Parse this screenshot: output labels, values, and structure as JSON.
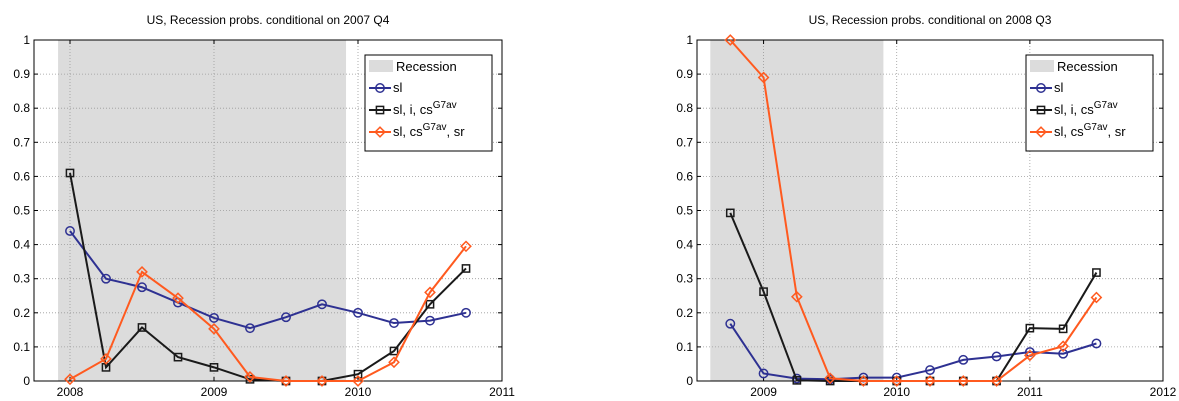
{
  "chart_data": [
    {
      "type": "line",
      "title": "US, Recession probs. conditional on 2007 Q4",
      "xlim": [
        2007.75,
        2011.0
      ],
      "ylim": [
        0,
        1
      ],
      "xticks": [
        2008,
        2009,
        2010,
        2011
      ],
      "xtick_labels": [
        "2008",
        "2009",
        "2010",
        "2011"
      ],
      "yticks": [
        0,
        0.1,
        0.2,
        0.3,
        0.4,
        0.5,
        0.6,
        0.7,
        0.8,
        0.9,
        1
      ],
      "ytick_labels": [
        "0",
        "0.1",
        "0.2",
        "0.3",
        "0.4",
        "0.5",
        "0.6",
        "0.7",
        "0.8",
        "0.9",
        "1"
      ],
      "grid": true,
      "legend_position": "top-right",
      "recession": {
        "label": "Recession",
        "start": 2007.917,
        "end": 2009.917,
        "color": "#dcdcdc"
      },
      "x": [
        2008.0,
        2008.25,
        2008.5,
        2008.75,
        2009.0,
        2009.25,
        2009.5,
        2009.75,
        2010.0,
        2010.25,
        2010.5,
        2010.75
      ],
      "series": [
        {
          "name": "sl",
          "name_sup": "",
          "name_suffix": "",
          "color": "#2e3192",
          "marker": "circle",
          "values": [
            0.44,
            0.3,
            0.275,
            0.23,
            0.185,
            0.155,
            0.187,
            0.225,
            0.2,
            0.17,
            0.177,
            0.2
          ]
        },
        {
          "name": "sl, i, cs",
          "name_sup": "G7av",
          "name_suffix": "",
          "color": "#1a1a1a",
          "marker": "square",
          "values": [
            0.61,
            0.04,
            0.157,
            0.07,
            0.04,
            0.005,
            0.0,
            0.0,
            0.02,
            0.088,
            0.225,
            0.33
          ]
        },
        {
          "name": "sl, cs",
          "name_sup": "G7av",
          "name_suffix": ", sr",
          "color": "#ff5a1f",
          "marker": "diamond",
          "values": [
            0.005,
            0.065,
            0.32,
            0.243,
            0.153,
            0.012,
            0.0,
            0.0,
            0.0,
            0.055,
            0.26,
            0.395
          ]
        }
      ]
    },
    {
      "type": "line",
      "title": "US, Recession probs. conditional on 2008 Q3",
      "xlim": [
        2008.5,
        2012.0
      ],
      "ylim": [
        0,
        1
      ],
      "xticks": [
        2009,
        2010,
        2011,
        2012
      ],
      "xtick_labels": [
        "2009",
        "2010",
        "2011",
        "2012"
      ],
      "yticks": [
        0,
        0.1,
        0.2,
        0.3,
        0.4,
        0.5,
        0.6,
        0.7,
        0.8,
        0.9,
        1
      ],
      "ytick_labels": [
        "0",
        "0.1",
        "0.2",
        "0.3",
        "0.4",
        "0.5",
        "0.6",
        "0.7",
        "0.8",
        "0.9",
        "1"
      ],
      "grid": true,
      "legend_position": "top-right",
      "recession": {
        "label": "Recession",
        "start": 2008.6,
        "end": 2009.9,
        "color": "#dcdcdc"
      },
      "x": [
        2008.75,
        2009.0,
        2009.25,
        2009.5,
        2009.75,
        2010.0,
        2010.25,
        2010.5,
        2010.75,
        2011.0,
        2011.25,
        2011.5
      ],
      "series": [
        {
          "name": "sl",
          "name_sup": "",
          "name_suffix": "",
          "color": "#2e3192",
          "marker": "circle",
          "values": [
            0.168,
            0.022,
            0.007,
            0.005,
            0.01,
            0.01,
            0.032,
            0.062,
            0.072,
            0.085,
            0.08,
            0.11
          ]
        },
        {
          "name": "sl, i, cs",
          "name_sup": "G7av",
          "name_suffix": "",
          "color": "#1a1a1a",
          "marker": "square",
          "values": [
            0.493,
            0.262,
            0.002,
            0.0,
            0.0,
            0.0,
            0.0,
            0.0,
            0.0,
            0.155,
            0.153,
            0.318
          ]
        },
        {
          "name": "sl, cs",
          "name_sup": "G7av",
          "name_suffix": ", sr",
          "color": "#ff5a1f",
          "marker": "diamond",
          "values": [
            1.0,
            0.89,
            0.247,
            0.008,
            0.0,
            0.0,
            0.0,
            0.0,
            0.0,
            0.075,
            0.102,
            0.245
          ]
        }
      ]
    }
  ]
}
